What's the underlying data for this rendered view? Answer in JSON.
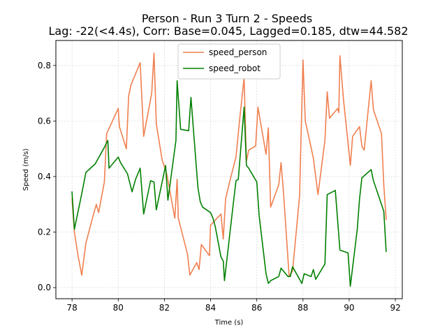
{
  "chart_data": {
    "type": "line",
    "title": "Person - Run 3 Turn 2 - Speeds",
    "subtitle": "Lag: -22(<4.4s), Corr: Base=0.045, Lagged=0.185, dtw=44.582",
    "xlabel": "Time (s)",
    "ylabel": "Speed (m/s)",
    "xlim": [
      77.3,
      92.3
    ],
    "ylim": [
      -0.04,
      0.89
    ],
    "xticks": [
      78,
      80,
      82,
      84,
      86,
      88,
      90,
      92
    ],
    "xtick_labels": [
      "78",
      "80",
      "82",
      "84",
      "86",
      "88",
      "90",
      "92"
    ],
    "yticks": [
      0.0,
      0.2,
      0.4,
      0.6,
      0.8
    ],
    "ytick_labels": [
      "0.0",
      "0.2",
      "0.4",
      "0.6",
      "0.8"
    ],
    "grid": true,
    "legend_position": "top-center",
    "series": [
      {
        "name": "speed_person",
        "color": "#f07f4f",
        "points": [
          [
            78.0,
            0.32
          ],
          [
            78.1,
            0.2
          ],
          [
            78.25,
            0.12
          ],
          [
            78.42,
            0.045
          ],
          [
            78.6,
            0.16
          ],
          [
            78.85,
            0.24
          ],
          [
            79.05,
            0.3
          ],
          [
            79.15,
            0.27
          ],
          [
            79.4,
            0.38
          ],
          [
            79.5,
            0.555
          ],
          [
            79.75,
            0.6
          ],
          [
            80.0,
            0.645
          ],
          [
            80.05,
            0.58
          ],
          [
            80.35,
            0.5
          ],
          [
            80.45,
            0.69
          ],
          [
            80.55,
            0.73
          ],
          [
            80.95,
            0.81
          ],
          [
            81.1,
            0.545
          ],
          [
            81.45,
            0.7
          ],
          [
            81.55,
            0.845
          ],
          [
            81.65,
            0.59
          ],
          [
            81.9,
            0.46
          ],
          [
            82.1,
            0.41
          ],
          [
            82.45,
            0.25
          ],
          [
            82.55,
            0.39
          ],
          [
            82.6,
            0.25
          ],
          [
            83.0,
            0.12
          ],
          [
            83.1,
            0.045
          ],
          [
            83.4,
            0.09
          ],
          [
            83.5,
            0.065
          ],
          [
            83.6,
            0.155
          ],
          [
            83.95,
            0.115
          ],
          [
            84.0,
            0.225
          ],
          [
            84.45,
            0.265
          ],
          [
            84.55,
            0.175
          ],
          [
            84.65,
            0.32
          ],
          [
            84.85,
            0.39
          ],
          [
            85.1,
            0.47
          ],
          [
            85.25,
            0.6
          ],
          [
            85.45,
            0.755
          ],
          [
            85.55,
            0.455
          ],
          [
            85.65,
            0.495
          ],
          [
            85.95,
            0.51
          ],
          [
            86.05,
            0.65
          ],
          [
            86.4,
            0.48
          ],
          [
            86.5,
            0.575
          ],
          [
            86.6,
            0.29
          ],
          [
            86.95,
            0.37
          ],
          [
            87.05,
            0.45
          ],
          [
            87.15,
            0.35
          ],
          [
            87.4,
            0.04
          ],
          [
            87.55,
            0.06
          ],
          [
            87.85,
            0.33
          ],
          [
            88.0,
            0.82
          ],
          [
            88.1,
            0.6
          ],
          [
            88.35,
            0.505
          ],
          [
            88.45,
            0.465
          ],
          [
            88.65,
            0.335
          ],
          [
            88.95,
            0.53
          ],
          [
            89.05,
            0.705
          ],
          [
            89.15,
            0.61
          ],
          [
            89.5,
            0.645
          ],
          [
            89.55,
            0.63
          ],
          [
            89.6,
            0.835
          ],
          [
            89.75,
            0.68
          ],
          [
            90.05,
            0.44
          ],
          [
            90.15,
            0.545
          ],
          [
            90.45,
            0.58
          ],
          [
            90.55,
            0.51
          ],
          [
            90.65,
            0.495
          ],
          [
            90.95,
            0.745
          ],
          [
            91.05,
            0.64
          ],
          [
            91.4,
            0.555
          ],
          [
            91.5,
            0.37
          ],
          [
            91.6,
            0.245
          ]
        ]
      },
      {
        "name": "speed_robot",
        "color": "#008000",
        "points": [
          [
            78.0,
            0.345
          ],
          [
            78.1,
            0.21
          ],
          [
            78.4,
            0.33
          ],
          [
            78.6,
            0.415
          ],
          [
            79.0,
            0.445
          ],
          [
            79.4,
            0.505
          ],
          [
            79.55,
            0.53
          ],
          [
            79.6,
            0.43
          ],
          [
            80.0,
            0.47
          ],
          [
            80.1,
            0.45
          ],
          [
            80.4,
            0.41
          ],
          [
            80.6,
            0.345
          ],
          [
            80.75,
            0.39
          ],
          [
            80.95,
            0.43
          ],
          [
            81.1,
            0.265
          ],
          [
            81.4,
            0.385
          ],
          [
            81.55,
            0.38
          ],
          [
            81.65,
            0.28
          ],
          [
            81.95,
            0.4
          ],
          [
            82.05,
            0.44
          ],
          [
            82.15,
            0.315
          ],
          [
            82.5,
            0.53
          ],
          [
            82.55,
            0.745
          ],
          [
            82.7,
            0.57
          ],
          [
            83.05,
            0.565
          ],
          [
            83.15,
            0.685
          ],
          [
            83.45,
            0.36
          ],
          [
            83.55,
            0.31
          ],
          [
            83.65,
            0.29
          ],
          [
            84.0,
            0.27
          ],
          [
            84.1,
            0.25
          ],
          [
            84.2,
            0.22
          ],
          [
            84.45,
            0.11
          ],
          [
            84.55,
            0.095
          ],
          [
            84.6,
            0.025
          ],
          [
            84.95,
            0.28
          ],
          [
            85.1,
            0.385
          ],
          [
            85.2,
            0.39
          ],
          [
            85.45,
            0.65
          ],
          [
            85.55,
            0.44
          ],
          [
            85.65,
            0.43
          ],
          [
            86.0,
            0.38
          ],
          [
            86.1,
            0.26
          ],
          [
            86.4,
            0.05
          ],
          [
            86.5,
            0.015
          ],
          [
            86.6,
            0.025
          ],
          [
            86.95,
            0.04
          ],
          [
            87.05,
            0.07
          ],
          [
            87.35,
            0.04
          ],
          [
            87.45,
            0.04
          ],
          [
            87.55,
            0.075
          ],
          [
            87.95,
            0.015
          ],
          [
            88.05,
            0.05
          ],
          [
            88.35,
            0.04
          ],
          [
            88.45,
            0.065
          ],
          [
            88.55,
            0.03
          ],
          [
            88.95,
            0.085
          ],
          [
            89.05,
            0.335
          ],
          [
            89.4,
            0.35
          ],
          [
            89.6,
            0.135
          ],
          [
            89.95,
            0.125
          ],
          [
            90.05,
            0.005
          ],
          [
            90.35,
            0.21
          ],
          [
            90.45,
            0.32
          ],
          [
            90.55,
            0.395
          ],
          [
            90.95,
            0.425
          ],
          [
            91.05,
            0.385
          ],
          [
            91.5,
            0.275
          ],
          [
            91.6,
            0.13
          ]
        ]
      }
    ]
  }
}
